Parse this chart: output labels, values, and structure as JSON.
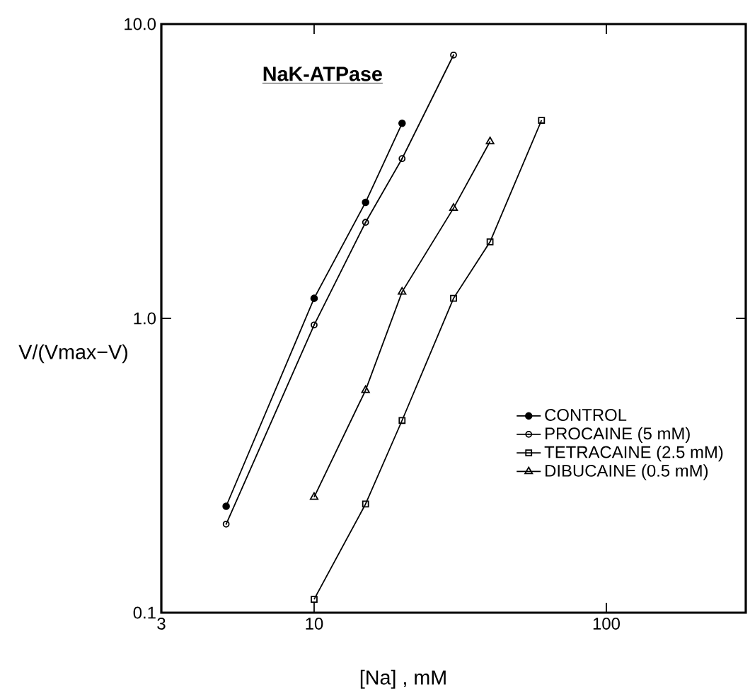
{
  "chart_data": {
    "type": "line",
    "xlabel": "[Na] , mM",
    "ylabel": "V/(Vmax−V)",
    "annotations": [
      "NaK-ATPase"
    ],
    "log": "xy",
    "xlim": [
      3,
      300
    ],
    "ylim": [
      0.1,
      10
    ],
    "xticks": [
      3,
      10,
      100
    ],
    "yticks": [
      {
        "value": 0.1,
        "label": "0.1"
      },
      {
        "value": 1,
        "label": "1.0"
      },
      {
        "value": 10,
        "label": "10.0"
      }
    ],
    "legend": "bottom right",
    "grid": false,
    "series": [
      {
        "name": "CONTROL",
        "color": "#000000",
        "marker": "circle",
        "x": [
          5,
          10,
          15,
          20
        ],
        "values": [
          0.23,
          1.17,
          2.48,
          4.6
        ]
      },
      {
        "name": "PROCAINE (5 mM)",
        "color": "#000000",
        "marker": "circle_dot",
        "x": [
          5,
          10,
          15,
          20,
          30
        ],
        "values": [
          0.2,
          0.95,
          2.12,
          3.49,
          7.85
        ]
      },
      {
        "name": "TETRACAINE (2.5 mM)",
        "color": "#000000",
        "marker": "square",
        "x": [
          10,
          15,
          20,
          30,
          40,
          60
        ],
        "values": [
          0.111,
          0.234,
          0.45,
          1.17,
          1.82,
          4.71
        ]
      },
      {
        "name": "DIBUCAINE (0.5 mM)",
        "color": "#000000",
        "marker": "triangle",
        "x": [
          10,
          15,
          20,
          30,
          40
        ],
        "values": [
          0.247,
          0.57,
          1.23,
          2.37,
          3.99
        ]
      }
    ]
  }
}
